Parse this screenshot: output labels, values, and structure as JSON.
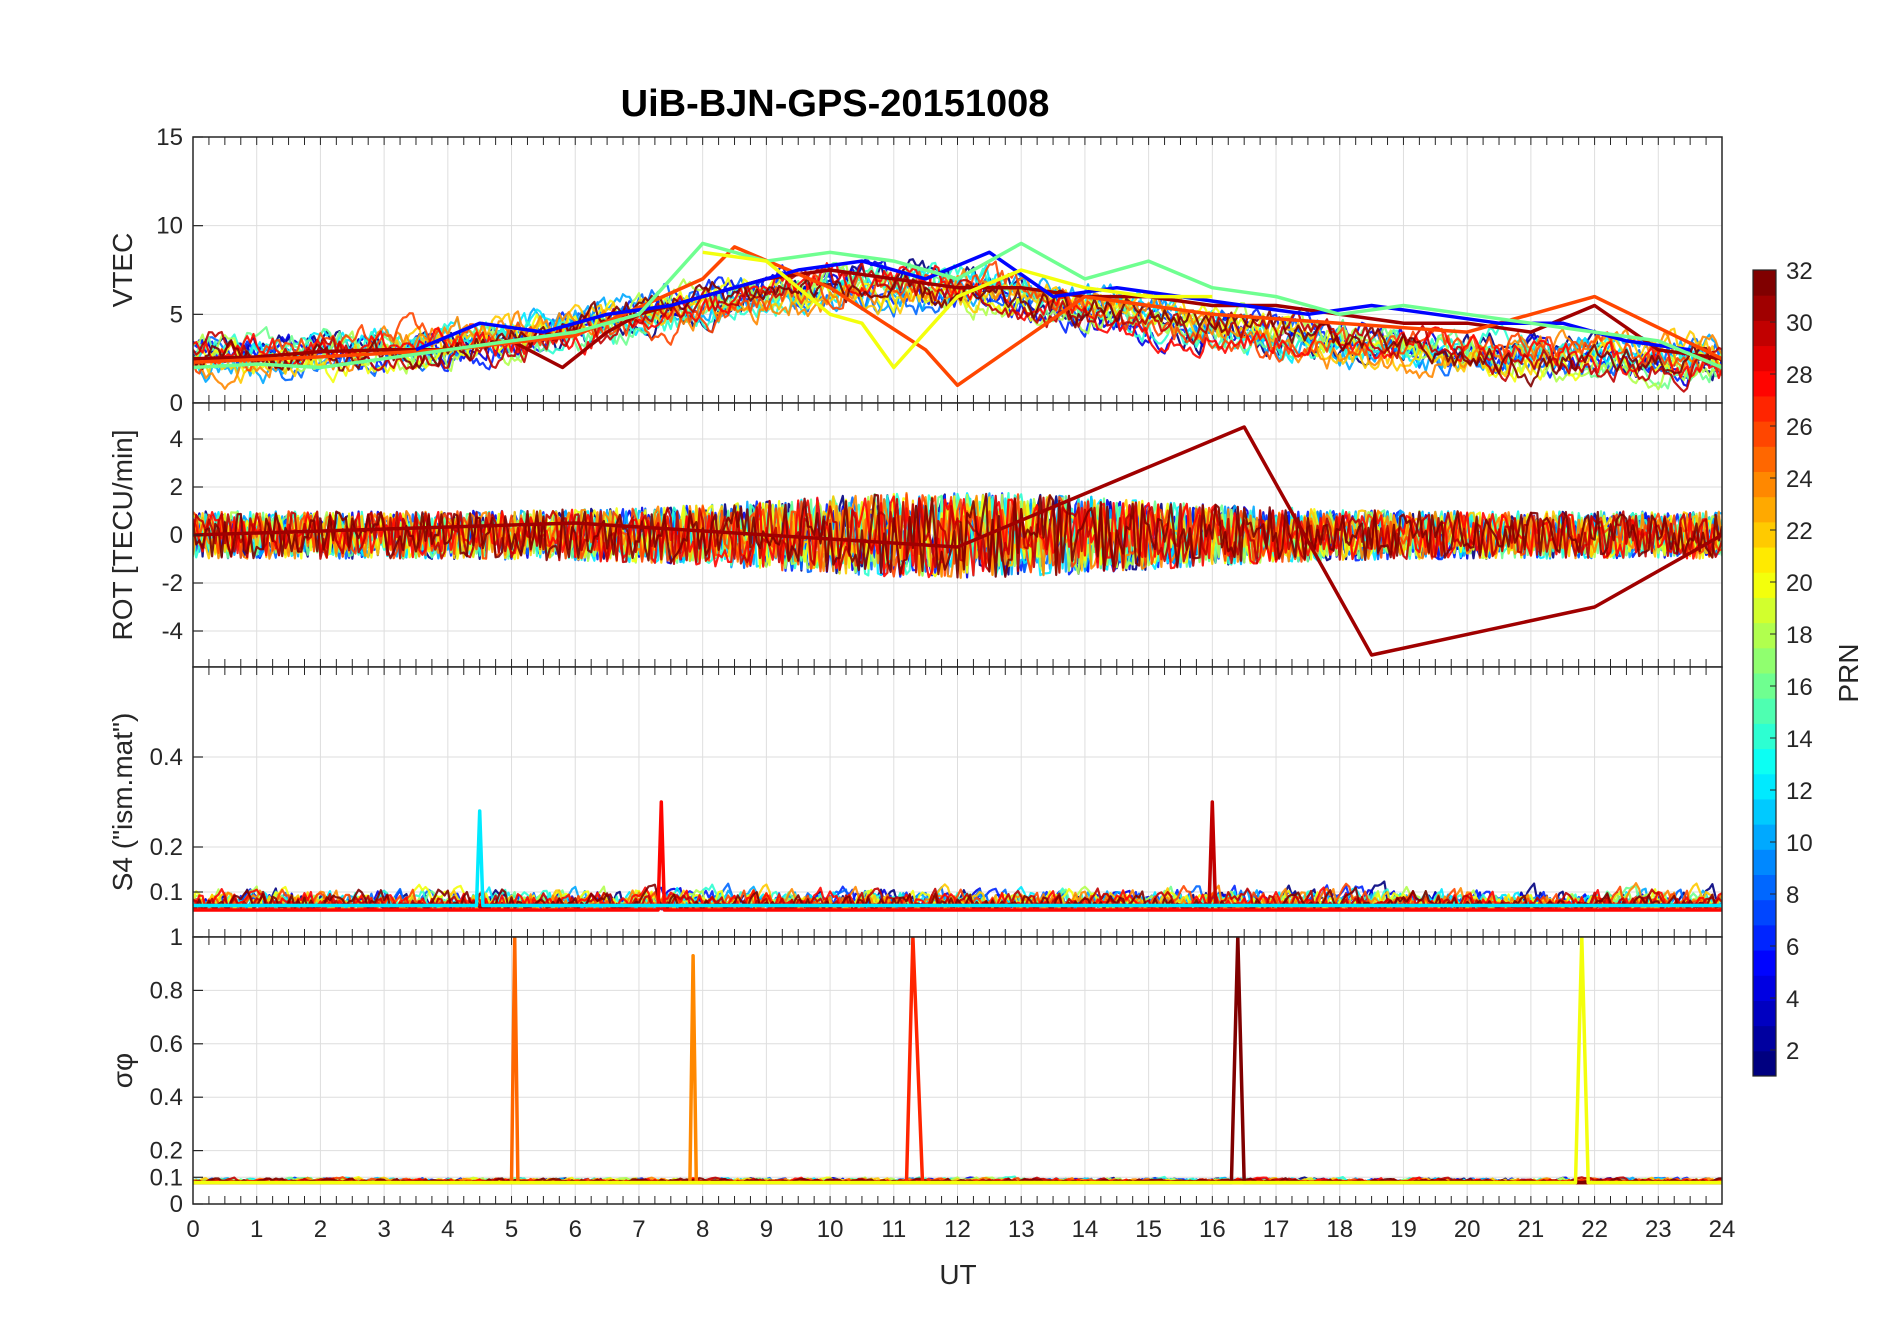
{
  "chart_data": {
    "title": "UiB-BJN-GPS-20151008",
    "type": "line",
    "x_axis": {
      "label": "UT",
      "range": [
        0,
        24
      ],
      "ticks": [
        0,
        1,
        2,
        3,
        4,
        5,
        6,
        7,
        8,
        9,
        10,
        11,
        12,
        13,
        14,
        15,
        16,
        17,
        18,
        19,
        20,
        21,
        22,
        23,
        24
      ],
      "tick_labels": [
        "0",
        "1",
        "2",
        "3",
        "4",
        "5",
        "6",
        "7",
        "8",
        "9",
        "10",
        "11",
        "12",
        "13",
        "14",
        "15",
        "16",
        "17",
        "18",
        "19",
        "20",
        "21",
        "22",
        "23",
        "24"
      ]
    },
    "grid": true,
    "colorbar": {
      "label": "PRN",
      "range": [
        1,
        32
      ],
      "ticks": [
        2,
        4,
        6,
        8,
        10,
        12,
        14,
        16,
        18,
        20,
        22,
        24,
        26,
        28,
        30,
        32
      ],
      "tick_labels": [
        "2",
        "4",
        "6",
        "8",
        "10",
        "12",
        "14",
        "16",
        "18",
        "20",
        "22",
        "24",
        "26",
        "28",
        "30",
        "32"
      ],
      "colormap": "jet",
      "colors": [
        "#00008f",
        "#0000ff",
        "#0080ff",
        "#00ffff",
        "#80ff80",
        "#ffff00",
        "#ff8000",
        "#ff0000",
        "#800000"
      ],
      "placement": "right"
    },
    "panels": [
      {
        "id": "vtec",
        "ylabel": "VTEC",
        "ylim": [
          0,
          15
        ],
        "yticks": [
          0,
          5,
          10,
          15
        ],
        "ytick_labels": [
          "0",
          "5",
          "10",
          "15"
        ],
        "baseline": 3,
        "series": [
          {
            "prn": 31,
            "x": [
              0,
              1,
              2,
              3,
              4,
              5,
              5.8,
              6.5,
              7,
              8,
              9,
              10,
              11,
              12,
              13,
              14,
              15,
              16,
              17,
              18,
              19,
              20,
              21,
              22,
              23,
              24
            ],
            "y": [
              2.5,
              2.6,
              2.9,
              3.0,
              3.0,
              3.5,
              2.0,
              4.0,
              5.0,
              6.0,
              7.0,
              7.5,
              7.0,
              6.5,
              6.5,
              6.0,
              6.0,
              5.5,
              5.5,
              5.0,
              4.5,
              4.5,
              4.0,
              5.5,
              3.0,
              2.5
            ]
          },
          {
            "prn": 26,
            "x": [
              0,
              2,
              4,
              6,
              8,
              8.5,
              10,
              11.5,
              12,
              14,
              16,
              18,
              20,
              22,
              24
            ],
            "y": [
              2.3,
              2.6,
              3.0,
              3.8,
              7.0,
              8.8,
              6.5,
              3.0,
              1.0,
              6.0,
              5.0,
              4.5,
              4.0,
              6.0,
              2.5
            ]
          },
          {
            "prn": 5,
            "x": [
              3.5,
              4.5,
              5.5,
              6.5,
              7.5,
              8.5,
              9.5,
              10.5,
              11.5,
              12.5,
              13.5,
              14.5,
              15.5,
              16.5,
              17.5,
              18.5,
              19.5,
              20.5,
              21.5,
              22.5,
              23.5
            ],
            "y": [
              3.0,
              4.5,
              4.0,
              5.0,
              5.5,
              6.5,
              7.5,
              8.0,
              7.0,
              8.5,
              6.0,
              6.5,
              6.0,
              5.5,
              5.0,
              5.5,
              5.0,
              4.5,
              4.5,
              3.5,
              3.0
            ]
          },
          {
            "prn": 16,
            "x": [
              0,
              1,
              2,
              3,
              4,
              5,
              6,
              7,
              8,
              9,
              10,
              11,
              12,
              13,
              14,
              15,
              16,
              17,
              18,
              19,
              20,
              21,
              22,
              23,
              24
            ],
            "y": [
              2.0,
              2.2,
              2.0,
              2.5,
              3.0,
              3.5,
              4.0,
              5.0,
              9.0,
              8.0,
              8.5,
              8.0,
              7.0,
              9.0,
              7.0,
              8.0,
              6.5,
              6.0,
              5.0,
              5.5,
              5.0,
              4.5,
              4.0,
              3.5,
              2.0
            ]
          },
          {
            "prn": 20,
            "x": [
              8,
              9,
              10,
              10.5,
              11,
              12,
              13,
              14,
              15,
              16
            ],
            "y": [
              8.5,
              8.0,
              5.0,
              4.5,
              2.0,
              6.0,
              7.5,
              6.5,
              6.0,
              6.0
            ]
          }
        ]
      },
      {
        "id": "rot",
        "ylabel": "ROT [TECU/min]",
        "ylim": [
          -5.5,
          5.5
        ],
        "yticks": [
          -4,
          -2,
          0,
          2,
          4
        ],
        "ytick_labels": [
          "-4",
          "-2",
          "0",
          "2",
          "4"
        ],
        "baseline": 0,
        "series": [
          {
            "prn": 31,
            "x": [
              0,
              6,
              12,
              16.5,
              18.5,
              22,
              24
            ],
            "y": [
              0,
              0.5,
              -0.5,
              4.5,
              -5.0,
              -3.0,
              0
            ],
            "note_amplitude": "noise ±1"
          }
        ]
      },
      {
        "id": "s4",
        "ylabel": "S4 (\"ism.mat\")",
        "ylim": [
          0,
          0.6
        ],
        "yticks": [
          0.1,
          0.2,
          0.4
        ],
        "ytick_labels": [
          "0.1",
          "0.2",
          "0.4"
        ],
        "baseline": 0.06,
        "series": [
          {
            "prn": 28,
            "x": [
              0,
              7.3,
              7.35,
              7.4,
              24
            ],
            "y": [
              0.06,
              0.06,
              0.3,
              0.06,
              0.06
            ]
          },
          {
            "prn": 30,
            "x": [
              0,
              15.95,
              16,
              16.05,
              24
            ],
            "y": [
              0.07,
              0.07,
              0.3,
              0.07,
              0.07
            ]
          },
          {
            "prn": 12,
            "x": [
              0,
              4.45,
              4.5,
              4.55,
              24
            ],
            "y": [
              0.07,
              0.07,
              0.28,
              0.07,
              0.07
            ]
          }
        ]
      },
      {
        "id": "sigma",
        "ylabel": "σφ",
        "ylim": [
          0,
          1
        ],
        "yticks": [
          0,
          0.1,
          0.2,
          0.4,
          0.6,
          0.8,
          1
        ],
        "ytick_labels": [
          "0",
          "0.1",
          "0.2",
          "0.4",
          "0.6",
          "0.8",
          "1"
        ],
        "baseline": 0.08,
        "series": [
          {
            "prn": 25,
            "x": [
              0,
              5.0,
              5.05,
              5.1,
              24
            ],
            "y": [
              0.08,
              0.08,
              1.0,
              0.08,
              0.08
            ]
          },
          {
            "prn": 24,
            "x": [
              0,
              7.8,
              7.85,
              7.9,
              24
            ],
            "y": [
              0.08,
              0.08,
              0.93,
              0.08,
              0.08
            ]
          },
          {
            "prn": 27,
            "x": [
              0,
              11.2,
              11.3,
              11.45,
              24
            ],
            "y": [
              0.08,
              0.08,
              1.0,
              0.08,
              0.08
            ]
          },
          {
            "prn": 32,
            "x": [
              0,
              16.3,
              16.4,
              16.5,
              24
            ],
            "y": [
              0.08,
              0.08,
              1.0,
              0.08,
              0.08
            ]
          },
          {
            "prn": 20,
            "x": [
              0,
              21.7,
              21.8,
              21.9,
              24
            ],
            "y": [
              0.08,
              0.08,
              1.0,
              0.08,
              0.08
            ]
          }
        ]
      }
    ]
  }
}
